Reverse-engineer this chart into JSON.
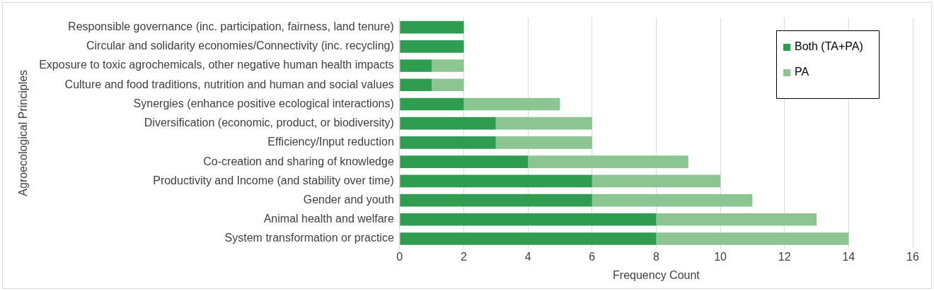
{
  "chart_data": {
    "type": "bar",
    "orientation": "horizontal",
    "stacked": true,
    "xlabel": "Frequency Count",
    "ylabel": "Agroecological Principles",
    "categories": [
      "Responsible governance (inc. participation, fairness, land tenure)",
      "Circular and solidarity economies/Connectivity (inc. recycling)",
      "Exposure to toxic agrochemicals, other negative human health impacts",
      "Culture and food traditions, nutrition and human and social values",
      "Synergies (enhance positive ecological interactions)",
      "Diversification (economic, product, or biodiversity)",
      "Efficiency/Input reduction",
      "Co-creation and sharing of knowledge",
      "Productivity and Income (and stability over time)",
      "Gender and youth",
      "Animal health and welfare",
      "System transformation or practice"
    ],
    "series": [
      {
        "name": "Both (TA+PA)",
        "color": "#2e9d4f",
        "values": [
          2,
          2,
          1,
          1,
          2,
          3,
          3,
          4,
          6,
          6,
          8,
          8
        ]
      },
      {
        "name": "PA",
        "color": "#8cc592",
        "values": [
          0,
          0,
          1,
          1,
          3,
          3,
          3,
          5,
          4,
          5,
          5,
          6
        ]
      }
    ],
    "xlim": [
      0,
      16
    ],
    "xticks": [
      0,
      2,
      4,
      6,
      8,
      10,
      12,
      14,
      16
    ],
    "grid": "x",
    "legend": "top right"
  }
}
